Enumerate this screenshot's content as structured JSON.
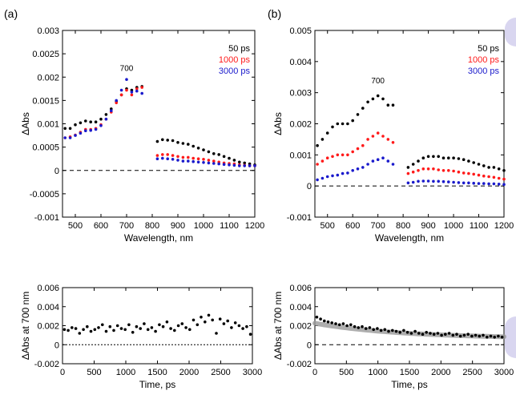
{
  "panel_labels": [
    "(a)",
    "(b)"
  ],
  "colors": {
    "black": "#000000",
    "red": "#ff1a1a",
    "blue": "#1a1acc",
    "fit": "#9a9a9a",
    "decor": "#d9d6f0"
  },
  "chart_data": [
    {
      "type": "scatter",
      "panel": "(a)",
      "xlabel": "Wavelength, nm",
      "ylabel": "ΔAbs",
      "xlim": [
        450,
        1200
      ],
      "ylim": [
        -0.001,
        0.003
      ],
      "xticks": [
        500,
        600,
        700,
        800,
        900,
        1000,
        1100,
        1200
      ],
      "xtick_labels": [
        "500",
        "600",
        "700",
        "800",
        "900",
        "1000",
        "1100",
        "1200"
      ],
      "yticks": [
        -0.001,
        -0.0005,
        0,
        0.0005,
        0.001,
        0.0015,
        0.002,
        0.0025,
        0.003
      ],
      "ytick_labels": [
        "-0.001",
        "-0.0005",
        "0",
        "0.0005",
        "0.001",
        "0.0015",
        "0.002",
        "0.0025",
        "0.003"
      ],
      "annotation": {
        "text": "700",
        "x": 700,
        "y": 0.00213
      },
      "legend_position": "top-right",
      "baseline": 0,
      "gap": [
        770,
        810
      ],
      "series": [
        {
          "name": "50 ps",
          "color": "#000000",
          "x": [
            460,
            480,
            500,
            520,
            540,
            560,
            580,
            600,
            620,
            640,
            660,
            680,
            700,
            720,
            740,
            760,
            820,
            840,
            860,
            880,
            900,
            920,
            940,
            960,
            980,
            1000,
            1020,
            1040,
            1060,
            1080,
            1100,
            1120,
            1140,
            1160,
            1180,
            1200
          ],
          "y": [
            0.0009,
            0.0009,
            0.00098,
            0.00102,
            0.00106,
            0.00104,
            0.00104,
            0.0011,
            0.0012,
            0.00132,
            0.00148,
            0.00162,
            0.00175,
            0.00172,
            0.00178,
            0.0018,
            0.00062,
            0.00066,
            0.00065,
            0.00064,
            0.0006,
            0.00058,
            0.00056,
            0.00052,
            0.00048,
            0.00044,
            0.0004,
            0.00036,
            0.00034,
            0.0003,
            0.00026,
            0.00022,
            0.00018,
            0.00016,
            0.00014,
            0.00012
          ]
        },
        {
          "name": "1000 ps",
          "color": "#ff1a1a",
          "x": [
            460,
            480,
            500,
            520,
            540,
            560,
            580,
            600,
            620,
            640,
            660,
            680,
            700,
            720,
            740,
            760,
            820,
            840,
            860,
            880,
            900,
            920,
            940,
            960,
            980,
            1000,
            1020,
            1040,
            1060,
            1080,
            1100,
            1120,
            1140,
            1160,
            1180,
            1200
          ],
          "y": [
            0.0007,
            0.00072,
            0.00076,
            0.00082,
            0.00088,
            0.00088,
            0.0009,
            0.00098,
            0.0011,
            0.00125,
            0.00145,
            0.00162,
            0.00172,
            0.00162,
            0.00175,
            0.00178,
            0.00032,
            0.00034,
            0.00034,
            0.00032,
            0.0003,
            0.00028,
            0.00028,
            0.00026,
            0.00025,
            0.00024,
            0.00022,
            0.0002,
            0.00018,
            0.00016,
            0.00015,
            0.00014,
            0.00012,
            0.00011,
            0.0001,
            0.0001
          ]
        },
        {
          "name": "3000 ps",
          "color": "#1a1acc",
          "x": [
            460,
            480,
            500,
            520,
            540,
            560,
            580,
            600,
            620,
            640,
            660,
            680,
            700,
            720,
            740,
            760,
            820,
            840,
            860,
            880,
            900,
            920,
            940,
            960,
            980,
            1000,
            1020,
            1040,
            1060,
            1080,
            1100,
            1120,
            1140,
            1160,
            1180,
            1200
          ],
          "y": [
            0.0007,
            0.0007,
            0.00075,
            0.0008,
            0.00085,
            0.00086,
            0.00088,
            0.00096,
            0.0011,
            0.00128,
            0.0015,
            0.00172,
            0.00195,
            0.00168,
            0.0017,
            0.00165,
            0.00025,
            0.00026,
            0.00025,
            0.00024,
            0.00022,
            0.0002,
            0.0002,
            0.00019,
            0.00018,
            0.00017,
            0.00016,
            0.00015,
            0.00014,
            0.00013,
            0.00012,
            0.00011,
            0.0001,
            0.0001,
            0.0001,
            0.0001
          ]
        }
      ]
    },
    {
      "type": "scatter",
      "panel": "(b)",
      "xlabel": "Wavelength, nm",
      "ylabel": "ΔAbs",
      "xlim": [
        450,
        1200
      ],
      "ylim": [
        -0.001,
        0.005
      ],
      "xticks": [
        500,
        600,
        700,
        800,
        900,
        1000,
        1100,
        1200
      ],
      "xtick_labels": [
        "500",
        "600",
        "700",
        "800",
        "900",
        "1000",
        "1100",
        "1200"
      ],
      "yticks": [
        -0.001,
        0,
        0.001,
        0.002,
        0.003,
        0.004,
        0.005
      ],
      "ytick_labels": [
        "-0.001",
        "0",
        "0.001",
        "0.002",
        "0.003",
        "0.004",
        "0.005"
      ],
      "annotation": {
        "text": "700",
        "x": 700,
        "y": 0.0033
      },
      "legend_position": "top-right",
      "baseline": 0,
      "gap": [
        770,
        810
      ],
      "series": [
        {
          "name": "50 ps",
          "color": "#000000",
          "x": [
            460,
            480,
            500,
            520,
            540,
            560,
            580,
            600,
            620,
            640,
            660,
            680,
            700,
            720,
            740,
            760,
            820,
            840,
            860,
            880,
            900,
            920,
            940,
            960,
            980,
            1000,
            1020,
            1040,
            1060,
            1080,
            1100,
            1120,
            1140,
            1160,
            1180,
            1200
          ],
          "y": [
            0.0013,
            0.0015,
            0.0017,
            0.0019,
            0.002,
            0.002,
            0.002,
            0.0021,
            0.0023,
            0.0025,
            0.0027,
            0.0028,
            0.0029,
            0.0028,
            0.0026,
            0.0026,
            0.0006,
            0.0007,
            0.0008,
            0.0009,
            0.00095,
            0.00095,
            0.00095,
            0.0009,
            0.0009,
            0.0009,
            0.00088,
            0.00085,
            0.0008,
            0.00075,
            0.0007,
            0.00065,
            0.0006,
            0.0006,
            0.00055,
            0.0005
          ]
        },
        {
          "name": "1000 ps",
          "color": "#ff1a1a",
          "x": [
            460,
            480,
            500,
            520,
            540,
            560,
            580,
            600,
            620,
            640,
            660,
            680,
            700,
            720,
            740,
            760,
            820,
            840,
            860,
            880,
            900,
            920,
            940,
            960,
            980,
            1000,
            1020,
            1040,
            1060,
            1080,
            1100,
            1120,
            1140,
            1160,
            1180,
            1200
          ],
          "y": [
            0.0007,
            0.0008,
            0.0009,
            0.00095,
            0.001,
            0.001,
            0.001,
            0.0011,
            0.0012,
            0.0013,
            0.0015,
            0.0016,
            0.0017,
            0.0016,
            0.0015,
            0.0014,
            0.0004,
            0.00045,
            0.0005,
            0.00055,
            0.00055,
            0.00055,
            0.00052,
            0.0005,
            0.0005,
            0.00048,
            0.00045,
            0.00042,
            0.0004,
            0.00038,
            0.00035,
            0.00032,
            0.0003,
            0.00028,
            0.00025,
            0.00022
          ]
        },
        {
          "name": "3000 ps",
          "color": "#1a1acc",
          "x": [
            460,
            480,
            500,
            520,
            540,
            560,
            580,
            600,
            620,
            640,
            660,
            680,
            700,
            720,
            740,
            760,
            820,
            840,
            860,
            880,
            900,
            920,
            940,
            960,
            980,
            1000,
            1020,
            1040,
            1060,
            1080,
            1100,
            1120,
            1140,
            1160,
            1180,
            1200
          ],
          "y": [
            0.0002,
            0.00025,
            0.0003,
            0.00033,
            0.00035,
            0.0004,
            0.00042,
            0.0005,
            0.00055,
            0.0006,
            0.0007,
            0.0008,
            0.00085,
            0.0009,
            0.0008,
            0.0007,
            0.0001,
            0.00012,
            0.00015,
            0.00016,
            0.00016,
            0.00015,
            0.00015,
            0.00014,
            0.00013,
            0.00012,
            0.00011,
            0.0001,
            0.0001,
            9e-05,
            8e-05,
            8e-05,
            7e-05,
            7e-05,
            6e-05,
            5e-05
          ]
        }
      ]
    },
    {
      "type": "scatter",
      "panel": "(a) kinetics",
      "xlabel": "Time, ps",
      "ylabel": "ΔAbs at 700 nm",
      "xlim": [
        0,
        3000
      ],
      "ylim": [
        -0.002,
        0.006
      ],
      "xticks": [
        0,
        500,
        1000,
        1500,
        2000,
        2500,
        3000
      ],
      "xtick_labels": [
        "0",
        "500",
        "1000",
        "1500",
        "2000",
        "2500",
        "3000"
      ],
      "yticks": [
        -0.002,
        0,
        0.002,
        0.004,
        0.006
      ],
      "ytick_labels": [
        "-0.002",
        "0",
        "0.002",
        "0.004",
        "0.006"
      ],
      "baseline": 0,
      "baseline_style": "dotted",
      "series": [
        {
          "color": "#000000",
          "x": [
            30,
            90,
            150,
            210,
            270,
            330,
            390,
            450,
            510,
            570,
            630,
            690,
            750,
            810,
            870,
            930,
            990,
            1050,
            1110,
            1170,
            1230,
            1290,
            1350,
            1410,
            1470,
            1530,
            1590,
            1650,
            1710,
            1770,
            1830,
            1890,
            1950,
            2010,
            2070,
            2130,
            2190,
            2250,
            2310,
            2370,
            2430,
            2490,
            2550,
            2610,
            2670,
            2730,
            2790,
            2850,
            2910,
            2970
          ],
          "y": [
            0.0016,
            0.0015,
            0.0018,
            0.0017,
            0.0012,
            0.0016,
            0.0019,
            0.0014,
            0.0016,
            0.0018,
            0.0021,
            0.0014,
            0.0019,
            0.0015,
            0.002,
            0.0017,
            0.0016,
            0.0021,
            0.0013,
            0.0019,
            0.0017,
            0.0022,
            0.0016,
            0.0018,
            0.0014,
            0.0021,
            0.0019,
            0.0024,
            0.0017,
            0.0015,
            0.002,
            0.0022,
            0.0018,
            0.0016,
            0.0026,
            0.0021,
            0.0029,
            0.0024,
            0.0031,
            0.0026,
            0.0012,
            0.0027,
            0.0022,
            0.0025,
            0.0018,
            0.0023,
            0.002,
            0.0017,
            0.0019,
            0.0011
          ]
        }
      ]
    },
    {
      "type": "scatter",
      "panel": "(b) kinetics",
      "xlabel": "Time, ps",
      "ylabel": "ΔAbs at 700 nm",
      "xlim": [
        0,
        3000
      ],
      "ylim": [
        -0.002,
        0.006
      ],
      "xticks": [
        0,
        500,
        1000,
        1500,
        2000,
        2500,
        3000
      ],
      "xtick_labels": [
        "0",
        "500",
        "1000",
        "1500",
        "2000",
        "2500",
        "3000"
      ],
      "yticks": [
        -0.002,
        0,
        0.002,
        0.004,
        0.006
      ],
      "ytick_labels": [
        "-0.002",
        "0",
        "0.002",
        "0.004",
        "0.006"
      ],
      "baseline": 0,
      "baseline_style": "dashed",
      "fit": {
        "type": "exponential",
        "a": 0.0016,
        "tau": 1400,
        "c": 0.00065
      },
      "series": [
        {
          "color": "#000000",
          "x": [
            30,
            90,
            150,
            210,
            270,
            330,
            390,
            450,
            510,
            570,
            630,
            690,
            750,
            810,
            870,
            930,
            990,
            1050,
            1110,
            1170,
            1230,
            1290,
            1350,
            1410,
            1470,
            1530,
            1590,
            1650,
            1710,
            1770,
            1830,
            1890,
            1950,
            2010,
            2070,
            2130,
            2190,
            2250,
            2310,
            2370,
            2430,
            2490,
            2550,
            2610,
            2670,
            2730,
            2790,
            2850,
            2910,
            2970
          ],
          "y": [
            0.0029,
            0.0027,
            0.0025,
            0.0024,
            0.0023,
            0.0022,
            0.0021,
            0.0022,
            0.002,
            0.0021,
            0.0019,
            0.0018,
            0.0019,
            0.0017,
            0.0018,
            0.0016,
            0.0017,
            0.0015,
            0.0016,
            0.0014,
            0.0015,
            0.0014,
            0.0013,
            0.0015,
            0.0013,
            0.0012,
            0.0014,
            0.0012,
            0.0011,
            0.0013,
            0.0012,
            0.0011,
            0.0012,
            0.001,
            0.0011,
            0.0012,
            0.001,
            0.0011,
            0.0009,
            0.001,
            0.0011,
            0.0009,
            0.001,
            0.0009,
            0.001,
            0.0008,
            0.0009,
            0.0008,
            0.0009,
            0.0008
          ]
        }
      ]
    }
  ]
}
